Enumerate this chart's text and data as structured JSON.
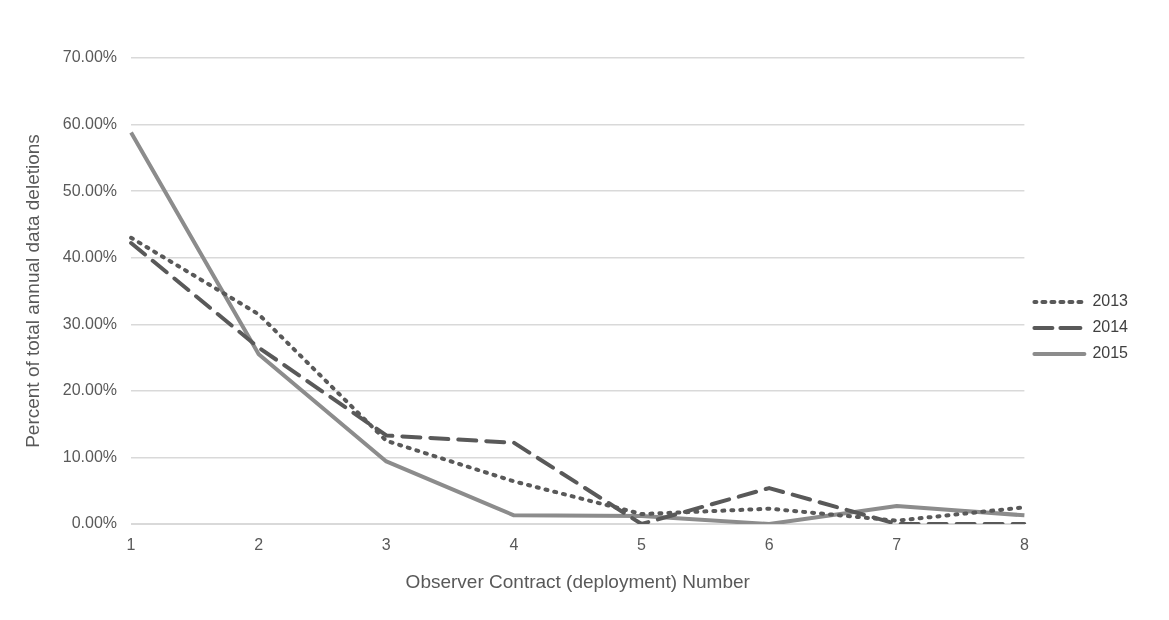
{
  "chart_data": {
    "type": "line",
    "xlabel": "Observer Contract (deployment) Number",
    "ylabel": "Percent of total annual data deletions",
    "categories": [
      "1",
      "2",
      "3",
      "4",
      "5",
      "6",
      "7",
      "8"
    ],
    "series": [
      {
        "name": "2013",
        "color": "#595959",
        "line_style": "dotted",
        "values": [
          43.0,
          31.5,
          12.5,
          6.4,
          1.5,
          2.3,
          0.5,
          2.5
        ]
      },
      {
        "name": "2014",
        "color": "#595959",
        "line_style": "dashed",
        "values": [
          42.2,
          26.5,
          13.3,
          12.2,
          0,
          5.4,
          0,
          0
        ]
      },
      {
        "name": "2015",
        "color": "#8c8c8c",
        "line_style": "solid",
        "values": [
          58.8,
          25.5,
          9.4,
          1.3,
          1.2,
          0,
          2.7,
          1.3
        ]
      }
    ],
    "ylim": [
      0,
      70
    ],
    "yticks": [
      {
        "value": 0,
        "label": "0.00%"
      },
      {
        "value": 10,
        "label": "10.00%"
      },
      {
        "value": 20,
        "label": "20.00%"
      },
      {
        "value": 30,
        "label": "30.00%"
      },
      {
        "value": 40,
        "label": "40.00%"
      },
      {
        "value": 50,
        "label": "50.00%"
      },
      {
        "value": 60,
        "label": "60.00%"
      },
      {
        "value": 70,
        "label": "70.00%"
      }
    ],
    "grid": "y",
    "legend": "right",
    "marker": "none"
  }
}
